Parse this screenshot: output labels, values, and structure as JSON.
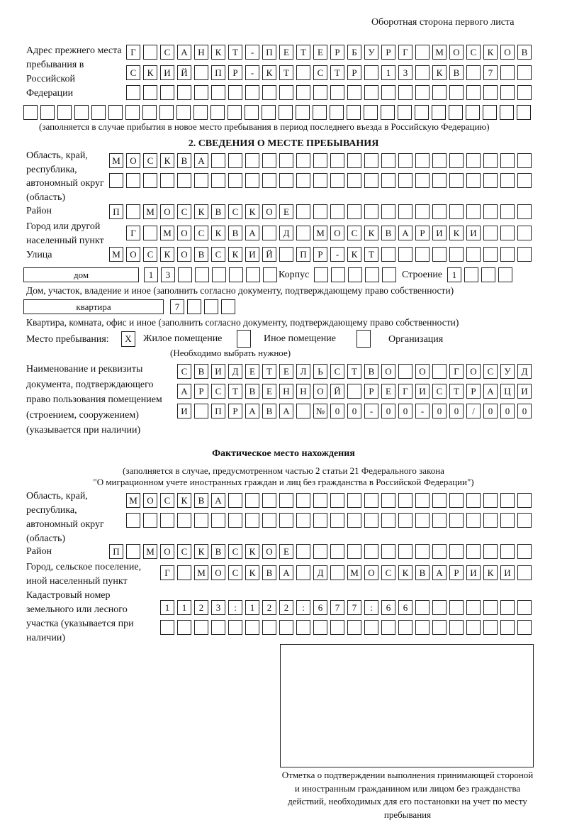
{
  "page_header": "Оборотная сторона первого листа",
  "prev_address": {
    "label": "Адрес прежнего места пребывания в Российской Федерации",
    "rows": [
      "Г САНКТ-ПЕТЕРБУРГ МОСКОВ",
      "СКИЙ ПР-КТ СТР 13 КВ 7",
      "",
      ""
    ],
    "note": "(заполняется в случае прибытия в новое место пребывания в период последнего въезда в Российскую Федерацию)"
  },
  "section2": {
    "title": "2. СВЕДЕНИЯ О МЕСТЕ ПРЕБЫВАНИЯ",
    "region_label": "Область, край, республика, автономный округ (область)",
    "region_rows": [
      "МОСКВА",
      ""
    ],
    "district_label": "Район",
    "district": "П МОСКВСКОЕ",
    "city_label": "Город или другой населенный пункт",
    "city": "Г МОСКВА Д МОСКВАРИКИ",
    "street_label": "Улица",
    "street": "МОСКОВСКИЙ ПР-КТ",
    "house_type": "дом",
    "house": "13",
    "korpus_label": "Корпус",
    "korpus": "",
    "building_label": "Строение",
    "building": "1",
    "house_note": "Дом, участок, владение и иное (заполнить согласно документу, подтверждающему право собственности)",
    "apt_type": "квартира",
    "apt": "7",
    "apt_note": "Квартира, комната, офис и иное (заполнить согласно документу, подтверждающему право собственности)",
    "stay_label": "Место пребывания:",
    "stay_options": [
      {
        "label": "Жилое помещение",
        "mark": "X"
      },
      {
        "label": "Иное помещение",
        "mark": ""
      },
      {
        "label": "Организация",
        "mark": ""
      }
    ],
    "stay_note": "(Необходимо выбрать нужное)",
    "doc_label": "Наименование и реквизиты документа, подтверждающего право пользования помещением (строением, сооружением) (указывается при наличии)",
    "doc_rows": [
      "СВИДЕТЕЛЬСТВО О ГОСУД",
      "АРСТВЕННОЙ РЕГИСТРАЦИ",
      "И ПРАВА №00-00-00/000"
    ]
  },
  "actual": {
    "title": "Фактическое место нахождения",
    "note1": "(заполняется в случае, предусмотренном частью 2 статьи 21 Федерального закона",
    "note2": "\"О миграционном учете иностранных граждан и лиц без гражданства в Российской Федерации\")",
    "region_label": "Область, край, республика, автономный округ (область)",
    "region_rows": [
      "МОСКВА",
      ""
    ],
    "district_label": "Район",
    "district": "П МОСКВСКОЕ",
    "city_label": "Город, сельское поселение, иной населенный пункт",
    "city": "Г МОСКВА Д МОСКВАРИКИ",
    "cadastral_label": "Кадастровый номер земельного или лесного участка (указывается при наличии)",
    "cadastral_rows": [
      "1123:122:677:66",
      ""
    ]
  },
  "stamp_caption": "Отметка о подтверждении выполнения принимающей стороной и иностранным гражданином или лицом без гражданства действий, необходимых для его постановки на учет по месту пребывания"
}
